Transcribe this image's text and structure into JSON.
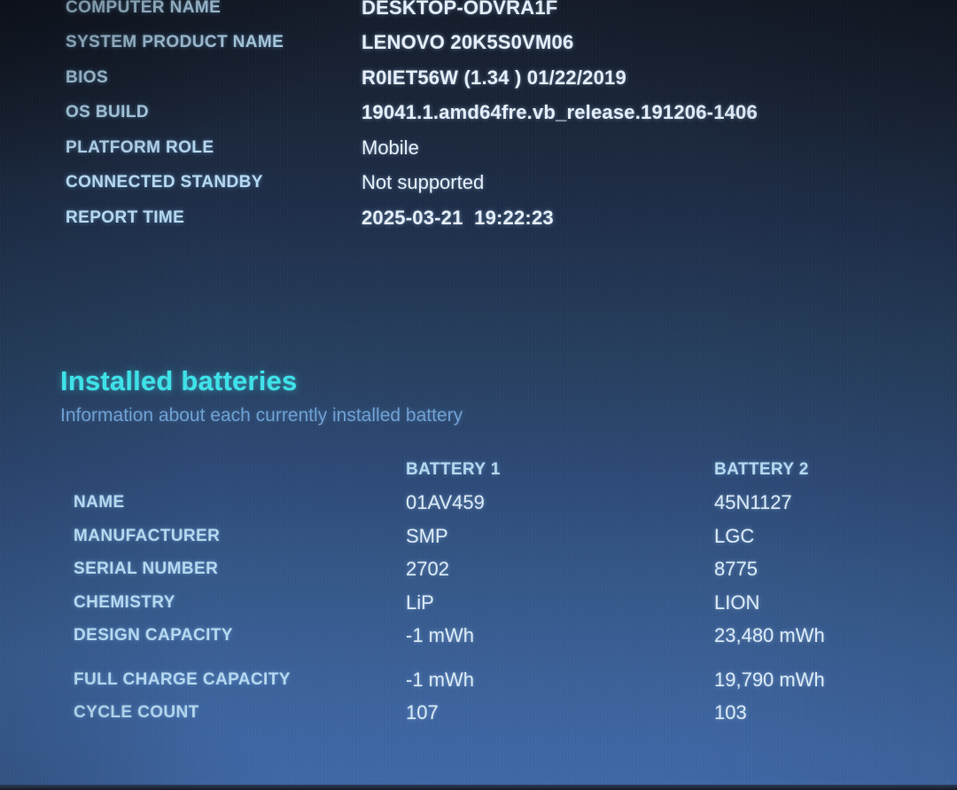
{
  "colors": {
    "heading_cyan": "#3ee2e8",
    "label_blue": "#b5d7ee",
    "value_white": "#e4edf8",
    "subtitle_blue": "#6fa0d2",
    "background_top": "#141b29",
    "background_bottom": "#4068a5"
  },
  "system_info": {
    "rows": [
      {
        "label": "COMPUTER NAME",
        "value": "DESKTOP-ODVRA1F"
      },
      {
        "label": "SYSTEM PRODUCT NAME",
        "value": "LENOVO 20K5S0VM06"
      },
      {
        "label": "BIOS",
        "value": "R0IET56W (1.34 ) 01/22/2019"
      },
      {
        "label": "OS BUILD",
        "value": "19041.1.amd64fre.vb_release.191206-1406"
      },
      {
        "label": "PLATFORM ROLE",
        "value": "Mobile"
      },
      {
        "label": "CONNECTED STANDBY",
        "value": "Not supported"
      },
      {
        "label": "REPORT TIME",
        "value": "2025-03-21  19:22:23"
      }
    ]
  },
  "installed_batteries": {
    "title": "Installed batteries",
    "subtitle": "Information about each currently installed battery",
    "column_headers": [
      "BATTERY 1",
      "BATTERY 2"
    ],
    "rows": [
      {
        "label": "NAME",
        "battery1": "01AV459",
        "battery2": "45N1127"
      },
      {
        "label": "MANUFACTURER",
        "battery1": "SMP",
        "battery2": "LGC"
      },
      {
        "label": "SERIAL NUMBER",
        "battery1": "2702",
        "battery2": "8775"
      },
      {
        "label": "CHEMISTRY",
        "battery1": "LiP",
        "battery2": "LION"
      },
      {
        "label": "DESIGN CAPACITY",
        "battery1": "-1 mWh",
        "battery2": "23,480 mWh"
      },
      {
        "label": "FULL CHARGE CAPACITY",
        "battery1": "-1 mWh",
        "battery2": "19,790 mWh"
      },
      {
        "label": "CYCLE COUNT",
        "battery1": "107",
        "battery2": "103"
      }
    ]
  }
}
